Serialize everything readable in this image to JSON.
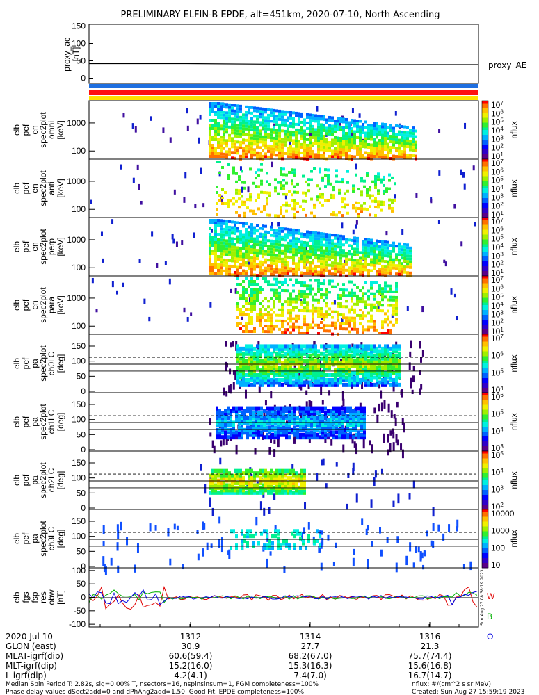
{
  "title": "PRELIMINARY ELFIN-B EPDE, alt=451km, 2020-07-10, North Ascending",
  "chart_data": [
    {
      "type": "line",
      "name": "proxy_ae",
      "ylabel": [
        "proxy_ae",
        "[nT]"
      ],
      "yticks": [
        "150",
        "100",
        "50",
        "0"
      ],
      "ylim": [
        -15,
        155
      ],
      "series": [
        {
          "name": "proxy_AE",
          "x": [
            0,
            0.25,
            0.5,
            0.75,
            1.0
          ],
          "values": [
            42,
            42,
            40,
            39,
            39
          ]
        }
      ]
    },
    {
      "type": "heatmap",
      "name": "pef_en_spec2plot_omni",
      "ylabel": [
        "elb",
        "pef",
        "en",
        "spec2plot",
        "omni",
        "[keV]"
      ],
      "yticks": [
        "1000",
        "100"
      ],
      "yscale": "log",
      "colorbar": {
        "label": "nflux",
        "ticks": [
          "10^7",
          "10^6",
          "10^5",
          "10^4",
          "10^3",
          "10^2",
          "10^1"
        ]
      }
    },
    {
      "type": "heatmap",
      "name": "pef_en_spec2plot_anti",
      "ylabel": [
        "elb",
        "pef",
        "en",
        "spec2plot",
        "anti",
        "[keV]"
      ],
      "yticks": [
        "1000",
        "100"
      ],
      "yscale": "log",
      "colorbar": {
        "label": "nflux",
        "ticks": [
          "10^7",
          "10^6",
          "10^5",
          "10^4",
          "10^3",
          "10^2",
          "10^1"
        ]
      }
    },
    {
      "type": "heatmap",
      "name": "pef_en_spec2plot_perp",
      "ylabel": [
        "elb",
        "pef",
        "en",
        "spec2plot",
        "perp",
        "[keV]"
      ],
      "yticks": [
        "1000",
        "100"
      ],
      "yscale": "log",
      "colorbar": {
        "label": "nflux",
        "ticks": [
          "10^7",
          "10^6",
          "10^5",
          "10^4",
          "10^3",
          "10^2",
          "10^1"
        ]
      }
    },
    {
      "type": "heatmap",
      "name": "pef_en_spec2plot_para",
      "ylabel": [
        "elb",
        "pef",
        "en",
        "spec2plot",
        "para",
        "[keV]"
      ],
      "yticks": [
        "1000",
        "100"
      ],
      "yscale": "log",
      "colorbar": {
        "label": "nflux",
        "ticks": [
          "10^7",
          "10^6",
          "10^5",
          "10^4",
          "10^3",
          "10^2",
          "10^1"
        ]
      }
    },
    {
      "type": "heatmap",
      "name": "pef_pa_spec2plot_ch0LC",
      "ylabel": [
        "elb",
        "pef",
        "pa",
        "spec2plot",
        "ch0LC",
        "[deg]"
      ],
      "yticks": [
        "150",
        "100",
        "50",
        "0"
      ],
      "colorbar": {
        "label": "nflux",
        "ticks": [
          "10^7",
          "10^6",
          "10^5",
          "10^4"
        ]
      }
    },
    {
      "type": "heatmap",
      "name": "pef_pa_spec2plot_ch1LC",
      "ylabel": [
        "elb",
        "pef",
        "pa",
        "spec2plot",
        "ch1LC",
        "[deg]"
      ],
      "yticks": [
        "150",
        "100",
        "50",
        "0"
      ],
      "colorbar": {
        "label": "nflux",
        "ticks": [
          "10^6",
          "10^5",
          "10^4",
          "10^3"
        ]
      }
    },
    {
      "type": "heatmap",
      "name": "pef_pa_spec2plot_ch2LC",
      "ylabel": [
        "elb",
        "pef",
        "pa",
        "spec2plot",
        "ch2LC",
        "[deg]"
      ],
      "yticks": [
        "150",
        "100",
        "50",
        "0"
      ],
      "colorbar": {
        "label": "nflux",
        "ticks": [
          "10^5",
          "10^4",
          "10^3",
          "10^2"
        ]
      }
    },
    {
      "type": "heatmap",
      "name": "pef_pa_spec2plot_ch3LC",
      "ylabel": [
        "elb",
        "pef",
        "pa",
        "spec2plot",
        "ch3LC",
        "[deg]"
      ],
      "yticks": [
        "150",
        "100",
        "50",
        "0"
      ],
      "colorbar": {
        "label": "nflux",
        "ticks": [
          "10000",
          "1000",
          "100",
          "10"
        ]
      }
    },
    {
      "type": "line",
      "name": "fgs_fsp_res_obw",
      "ylabel": [
        "elb",
        "fgs",
        "fsp",
        "res",
        "obw",
        "[nT]"
      ],
      "yticks": [
        "100",
        "50",
        "0",
        "-50",
        "-100"
      ],
      "ylim": [
        -110,
        110
      ],
      "series": [
        {
          "name": "W"
        },
        {
          "name": "B"
        },
        {
          "name": "O"
        }
      ]
    }
  ],
  "proxy_legend": "proxy_AE",
  "fgs_legend": [
    "W",
    "B",
    "O"
  ],
  "stamp": "Sun Aug 27 08:38:19 2023",
  "xaxis": {
    "row_labels": [
      "2020 Jul 10",
      "GLON (east)",
      "MLAT-igrf(dip)",
      "MLT-igrf(dip)",
      "L-igrf(dip)"
    ],
    "columns": [
      {
        "time": "1312",
        "glon": "30.9",
        "mlat": "60.6(59.4)",
        "mlt": "15.2(16.0)",
        "l": "4.2(4.1)"
      },
      {
        "time": "1314",
        "glon": "27.7",
        "mlat": "68.2(67.0)",
        "mlt": "15.3(16.3)",
        "l": "7.4(7.0)"
      },
      {
        "time": "1316",
        "glon": "21.3",
        "mlat": "75.7(74.4)",
        "mlt": "15.6(16.8)",
        "l": "16.7(14.7)"
      }
    ]
  },
  "footer": {
    "line1": "Median Spin Period T: 2.82s, sig=0.00% T, nsectors=16, nspinsinsum=1, FGM completeness=100%",
    "line2": "Phase delay values dSect2add=0 and dPhAng2add=1.50, Good Fit, EPDE completeness=100%",
    "units": "nflux: #/(cm^2 s sr MeV)",
    "created": "Created: Sun Aug 27 15:59:19 2023"
  }
}
